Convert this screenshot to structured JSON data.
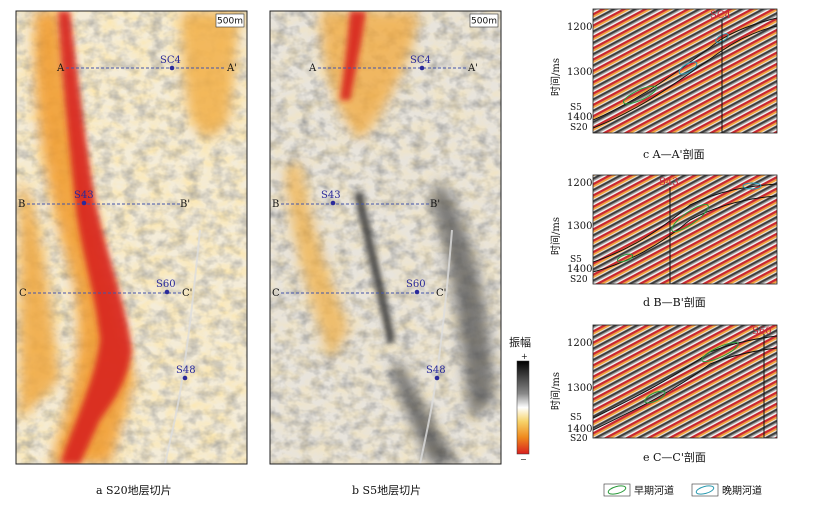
{
  "figure": {
    "panel_a": {
      "caption": "a  S20地层切片",
      "scale_bar": "500m"
    },
    "panel_b": {
      "caption": "b  S5地层切片",
      "scale_bar": "500m"
    },
    "wells": {
      "sc4": "SC4",
      "s43": "S43",
      "s60": "S60",
      "s48": "S48"
    },
    "sections": {
      "a": "A",
      "a_prime": "A'",
      "b": "B",
      "b_prime": "B'",
      "c": "C",
      "c_prime": "C'"
    },
    "colorbar": {
      "title": "振幅",
      "plus": "+",
      "minus": "−"
    },
    "profile_c": {
      "caption": "c  A—A'剖面",
      "well": "SC4",
      "ylabel": "时间/ms",
      "ticks": [
        "1200",
        "1300",
        "1400"
      ],
      "horizons": [
        "S5",
        "S20"
      ]
    },
    "profile_d": {
      "caption": "d  B—B'剖面",
      "well": "S43",
      "ylabel": "时间/ms",
      "ticks": [
        "1200",
        "1300",
        "1400"
      ],
      "horizons": [
        "S5",
        "S20"
      ]
    },
    "profile_e": {
      "caption": "e  C—C'剖面",
      "well": "S60",
      "ylabel": "时间/ms",
      "ticks": [
        "1200",
        "1300",
        "1400"
      ],
      "horizons": [
        "S5",
        "S20"
      ]
    },
    "legend": {
      "early": "早期河道",
      "late": "晚期河道",
      "early_color": "#2a9a3a",
      "late_color": "#2a9ab0"
    }
  }
}
